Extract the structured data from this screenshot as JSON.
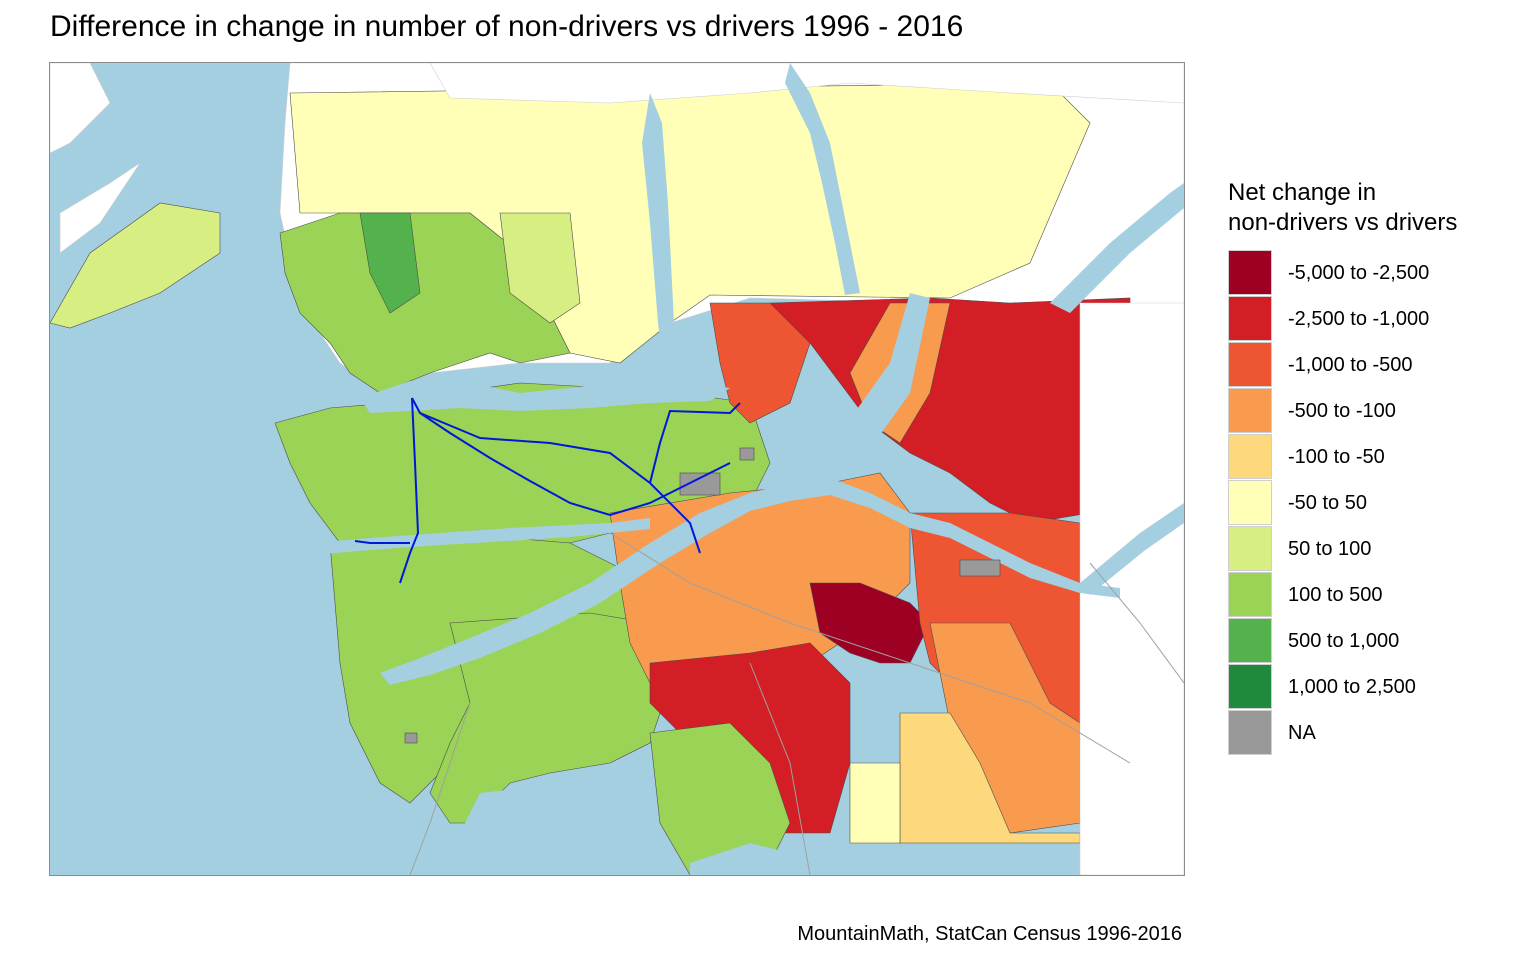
{
  "title": "Difference in change in number of non-drivers vs drivers 1996 - 2016",
  "legend": {
    "title_lines": [
      "Net change in",
      "non-drivers vs drivers"
    ],
    "items": [
      {
        "label": "-5,000 to -2,500",
        "color": "#9e0024"
      },
      {
        "label": "-2,500 to -1,000",
        "color": "#d21e24"
      },
      {
        "label": "-1,000 to -500",
        "color": "#ee5533"
      },
      {
        "label": "-500 to -100",
        "color": "#f99b4e"
      },
      {
        "label": "-100 to -50",
        "color": "#fdd87d"
      },
      {
        "label": "-50 to 50",
        "color": "#ffffb7"
      },
      {
        "label": "50 to 100",
        "color": "#d6ee82"
      },
      {
        "label": "100 to 500",
        "color": "#9ad356"
      },
      {
        "label": "500 to 1,000",
        "color": "#53b24c"
      },
      {
        "label": "1,000 to 2,500",
        "color": "#1f8a3e"
      },
      {
        "label": "NA",
        "color": "#999999"
      }
    ]
  },
  "map": {
    "water_color": "#a3cfe0",
    "transit_color": "#0018d8",
    "boundary_color": "#4d4d4d",
    "road_color": "#a0a0a0"
  },
  "caption": "MountainMath, StatCan Census 1996-2016"
}
